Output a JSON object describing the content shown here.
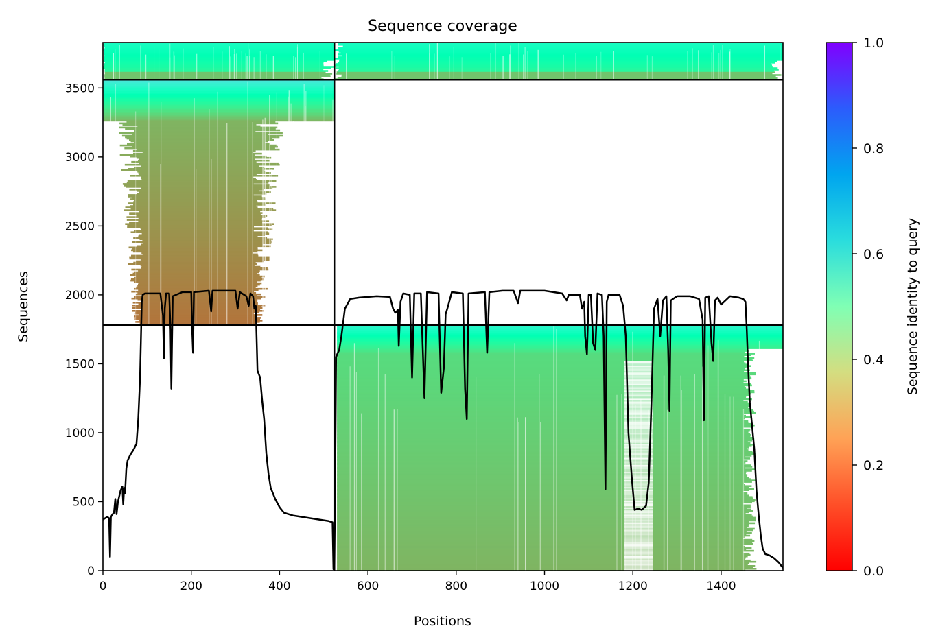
{
  "chart_data": {
    "type": "heatmap",
    "title": "Sequence coverage",
    "xlabel": "Positions",
    "ylabel": "Sequences",
    "xlim": [
      0,
      1540
    ],
    "ylim": [
      0,
      3830
    ],
    "xticks": [
      0,
      200,
      400,
      600,
      800,
      1000,
      1200,
      1400
    ],
    "yticks": [
      0,
      500,
      1000,
      1500,
      2000,
      2500,
      3000,
      3500
    ],
    "colorbar": {
      "label": "Sequence identity to query",
      "range": [
        0,
        1
      ],
      "ticks": [
        "0.0",
        "0.2",
        "0.4",
        "0.6",
        "0.8",
        "1.0"
      ],
      "colormap": "rainbow_r"
    },
    "separators": {
      "vertical_x": 524,
      "horizontal_y": [
        1780,
        3560
      ]
    },
    "blocks": [
      {
        "segment": 1,
        "x_range": [
          0,
          524
        ],
        "y_range": [
          0,
          1780
        ],
        "filled": false
      },
      {
        "segment": 1,
        "x_range": [
          0,
          524
        ],
        "y_range": [
          1780,
          3560
        ],
        "filled": true,
        "bottom_identity": 0.15,
        "middle_identity": 0.25,
        "top_identity": 0.65,
        "core_x_range": [
          90,
          340
        ],
        "wide_x_range": [
          25,
          420
        ]
      },
      {
        "segment": 1,
        "x_range": [
          0,
          524
        ],
        "y_range": [
          3560,
          3830
        ],
        "filled": true,
        "bottom_identity": 0.3,
        "top_identity": 0.55
      },
      {
        "segment": 2,
        "x_range": [
          524,
          1540
        ],
        "y_range": [
          0,
          1780
        ],
        "filled": true,
        "bottom_identity": 0.25,
        "top_identity": 0.6,
        "core_x_range": [
          530,
          1460
        ],
        "gap_x_range": [
          1180,
          1245
        ]
      },
      {
        "segment": 2,
        "x_range": [
          524,
          1540
        ],
        "y_range": [
          1780,
          3560
        ],
        "filled": false
      },
      {
        "segment": 2,
        "x_range": [
          524,
          1540
        ],
        "y_range": [
          3560,
          3830
        ],
        "filled": true,
        "bottom_identity": 0.3,
        "top_identity": 0.55
      }
    ],
    "coverage": {
      "name": "",
      "color": "#000000",
      "points": [
        [
          0,
          370
        ],
        [
          10,
          390
        ],
        [
          14,
          380
        ],
        [
          16,
          100
        ],
        [
          18,
          390
        ],
        [
          22,
          410
        ],
        [
          25,
          420
        ],
        [
          28,
          520
        ],
        [
          31,
          410
        ],
        [
          34,
          500
        ],
        [
          40,
          580
        ],
        [
          44,
          610
        ],
        [
          46,
          480
        ],
        [
          48,
          600
        ],
        [
          50,
          560
        ],
        [
          53,
          740
        ],
        [
          56,
          800
        ],
        [
          62,
          840
        ],
        [
          70,
          880
        ],
        [
          76,
          920
        ],
        [
          80,
          1100
        ],
        [
          84,
          1400
        ],
        [
          88,
          1950
        ],
        [
          90,
          2000
        ],
        [
          95,
          2010
        ],
        [
          130,
          2010
        ],
        [
          136,
          1850
        ],
        [
          138,
          1540
        ],
        [
          140,
          1900
        ],
        [
          143,
          2010
        ],
        [
          150,
          2010
        ],
        [
          153,
          1750
        ],
        [
          155,
          1320
        ],
        [
          158,
          1990
        ],
        [
          180,
          2020
        ],
        [
          200,
          2020
        ],
        [
          202,
          1750
        ],
        [
          204,
          1580
        ],
        [
          206,
          2020
        ],
        [
          240,
          2030
        ],
        [
          245,
          1880
        ],
        [
          248,
          2030
        ],
        [
          300,
          2030
        ],
        [
          305,
          1900
        ],
        [
          310,
          2020
        ],
        [
          325,
          1990
        ],
        [
          330,
          1920
        ],
        [
          334,
          2010
        ],
        [
          340,
          1990
        ],
        [
          343,
          1900
        ],
        [
          346,
          1920
        ],
        [
          350,
          1450
        ],
        [
          356,
          1400
        ],
        [
          360,
          1250
        ],
        [
          365,
          1100
        ],
        [
          370,
          850
        ],
        [
          375,
          700
        ],
        [
          380,
          600
        ],
        [
          390,
          520
        ],
        [
          400,
          460
        ],
        [
          410,
          420
        ],
        [
          430,
          400
        ],
        [
          450,
          390
        ],
        [
          470,
          380
        ],
        [
          490,
          370
        ],
        [
          510,
          360
        ],
        [
          520,
          350
        ],
        [
          522,
          10
        ],
        [
          524,
          10
        ],
        [
          526,
          700
        ],
        [
          528,
          1550
        ],
        [
          532,
          1580
        ],
        [
          535,
          1600
        ],
        [
          540,
          1700
        ],
        [
          548,
          1900
        ],
        [
          560,
          1970
        ],
        [
          580,
          1980
        ],
        [
          620,
          1990
        ],
        [
          650,
          1985
        ],
        [
          657,
          1900
        ],
        [
          662,
          1870
        ],
        [
          668,
          1890
        ],
        [
          670,
          1630
        ],
        [
          674,
          1950
        ],
        [
          680,
          2010
        ],
        [
          695,
          2000
        ],
        [
          700,
          1400
        ],
        [
          705,
          2010
        ],
        [
          720,
          2010
        ],
        [
          728,
          1250
        ],
        [
          734,
          2020
        ],
        [
          760,
          2010
        ],
        [
          766,
          1290
        ],
        [
          772,
          1470
        ],
        [
          776,
          1860
        ],
        [
          780,
          1900
        ],
        [
          790,
          2020
        ],
        [
          815,
          2010
        ],
        [
          820,
          1320
        ],
        [
          824,
          1100
        ],
        [
          828,
          2010
        ],
        [
          865,
          2020
        ],
        [
          870,
          1580
        ],
        [
          875,
          2020
        ],
        [
          905,
          2030
        ],
        [
          930,
          2030
        ],
        [
          940,
          1940
        ],
        [
          945,
          2030
        ],
        [
          960,
          2030
        ],
        [
          1000,
          2030
        ],
        [
          1020,
          2020
        ],
        [
          1040,
          2010
        ],
        [
          1050,
          1960
        ],
        [
          1055,
          2000
        ],
        [
          1080,
          2000
        ],
        [
          1085,
          1900
        ],
        [
          1090,
          1950
        ],
        [
          1092,
          1700
        ],
        [
          1096,
          1570
        ],
        [
          1100,
          2000
        ],
        [
          1105,
          2000
        ],
        [
          1110,
          1650
        ],
        [
          1115,
          1600
        ],
        [
          1120,
          2010
        ],
        [
          1130,
          2000
        ],
        [
          1134,
          1700
        ],
        [
          1138,
          590
        ],
        [
          1141,
          1950
        ],
        [
          1145,
          2000
        ],
        [
          1170,
          2000
        ],
        [
          1178,
          1920
        ],
        [
          1184,
          1700
        ],
        [
          1190,
          1000
        ],
        [
          1198,
          660
        ],
        [
          1204,
          440
        ],
        [
          1212,
          450
        ],
        [
          1220,
          440
        ],
        [
          1230,
          470
        ],
        [
          1236,
          640
        ],
        [
          1242,
          1200
        ],
        [
          1248,
          1900
        ],
        [
          1256,
          1970
        ],
        [
          1262,
          1700
        ],
        [
          1268,
          1960
        ],
        [
          1276,
          1990
        ],
        [
          1280,
          1600
        ],
        [
          1283,
          1160
        ],
        [
          1286,
          1960
        ],
        [
          1300,
          1990
        ],
        [
          1330,
          1990
        ],
        [
          1350,
          1970
        ],
        [
          1358,
          1820
        ],
        [
          1361,
          1090
        ],
        [
          1364,
          1980
        ],
        [
          1372,
          1990
        ],
        [
          1378,
          1650
        ],
        [
          1382,
          1520
        ],
        [
          1386,
          1960
        ],
        [
          1392,
          1980
        ],
        [
          1400,
          1930
        ],
        [
          1410,
          1960
        ],
        [
          1420,
          1990
        ],
        [
          1440,
          1980
        ],
        [
          1450,
          1970
        ],
        [
          1455,
          1950
        ],
        [
          1458,
          1750
        ],
        [
          1461,
          1480
        ],
        [
          1465,
          1220
        ],
        [
          1470,
          1050
        ],
        [
          1475,
          880
        ],
        [
          1480,
          580
        ],
        [
          1485,
          400
        ],
        [
          1490,
          250
        ],
        [
          1494,
          160
        ],
        [
          1500,
          120
        ],
        [
          1510,
          110
        ],
        [
          1520,
          90
        ],
        [
          1530,
          60
        ],
        [
          1540,
          20
        ]
      ]
    }
  }
}
